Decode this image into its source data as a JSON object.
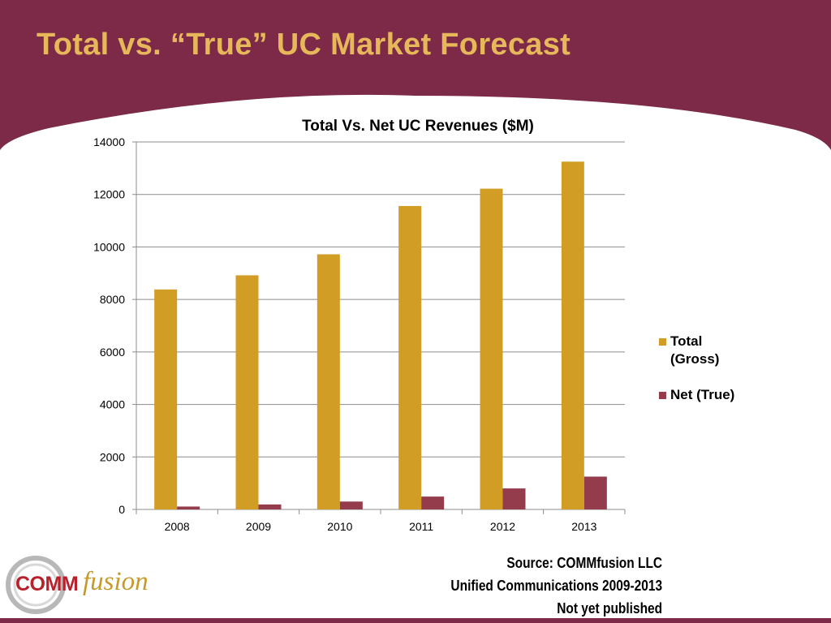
{
  "slide": {
    "title": "Total vs. “True” UC Market Forecast"
  },
  "colors": {
    "background": "#7d2a48",
    "title": "#e7b85a",
    "total_bar": "#d29d25",
    "net_bar": "#943c4b"
  },
  "chart_data": {
    "type": "bar",
    "title": "Total Vs. Net UC Revenues ($M)",
    "categories": [
      "2008",
      "2009",
      "2010",
      "2011",
      "2012",
      "2013"
    ],
    "series": [
      {
        "name": "Total (Gross)",
        "values": [
          8380,
          8920,
          9720,
          11560,
          12220,
          13250
        ]
      },
      {
        "name": "Net (True)",
        "values": [
          110,
          190,
          300,
          490,
          800,
          1250
        ]
      }
    ],
    "ylim": [
      0,
      14000
    ],
    "yticks": [
      0,
      2000,
      4000,
      6000,
      8000,
      10000,
      12000,
      14000
    ],
    "grid": true,
    "legend_position": "right"
  },
  "legend": {
    "total_line1": "Total",
    "total_line2": "(Gross)",
    "net": "Net (True)"
  },
  "source": {
    "line1": "Source: COMMfusion LLC",
    "line2": "Unified Communications 2009-2013",
    "line3": "Not yet published"
  },
  "logo": {
    "comm": "COMM",
    "fusion": "fusion"
  }
}
